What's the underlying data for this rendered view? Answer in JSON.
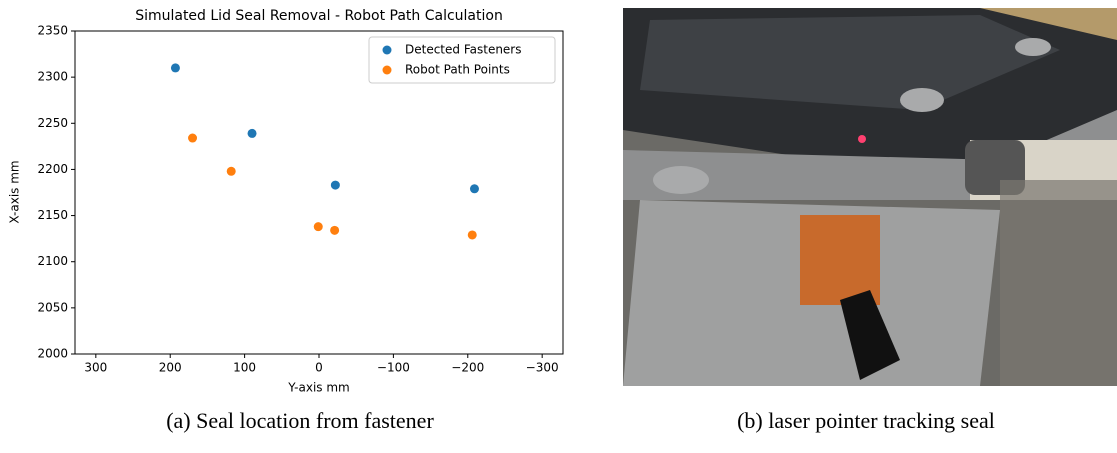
{
  "chart_data": {
    "type": "scatter",
    "title": "Simulated Lid Seal Removal - Robot Path Calculation",
    "x_label": "Y-axis mm",
    "y_label": "X-axis mm",
    "xlim": [
      328,
      -328
    ],
    "ylim": [
      2000,
      2350
    ],
    "xticks": [
      300,
      200,
      100,
      0,
      {
        "value": -100,
        "label": "−100"
      },
      {
        "value": -200,
        "label": "−200"
      },
      {
        "value": -300,
        "label": "−300"
      }
    ],
    "yticks": [
      2000,
      2050,
      2100,
      2150,
      2200,
      2250,
      2300,
      2350
    ],
    "legend": "upper right",
    "series": [
      {
        "name": "Detected Fasteners",
        "color": "#1f77b4",
        "x": [
          193,
          90,
          -22,
          -209
        ],
        "values": [
          2310,
          2239,
          2183,
          2179
        ]
      },
      {
        "name": "Robot Path Points",
        "color": "#ff7f0e",
        "x": [
          170,
          118,
          1,
          -21,
          -206
        ],
        "values": [
          2234,
          2198,
          2138,
          2134,
          2129
        ]
      }
    ]
  },
  "captions": [
    "(a) Seal location from fastener",
    "(b) laser pointer tracking seal"
  ]
}
